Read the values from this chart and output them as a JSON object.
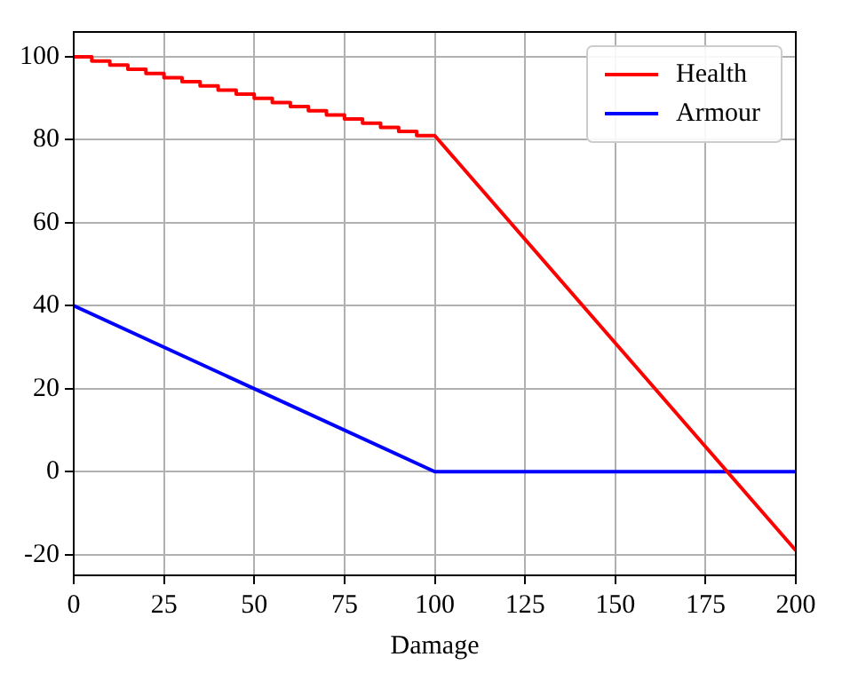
{
  "chart_data": {
    "type": "line",
    "xlabel": "Damage",
    "xlim": [
      0,
      200
    ],
    "xticks": [
      0,
      25,
      50,
      75,
      100,
      125,
      150,
      175,
      200
    ],
    "ylim": [
      -25,
      106
    ],
    "yticks": [
      -20,
      0,
      20,
      40,
      60,
      80,
      100
    ],
    "grid": true,
    "legend": "top right",
    "marker": "none",
    "line_style": "solid",
    "series": [
      {
        "name": "Health",
        "color": "#ff0000",
        "x": [
          0,
          5,
          5,
          10,
          10,
          15,
          15,
          20,
          20,
          25,
          25,
          30,
          30,
          35,
          35,
          40,
          40,
          45,
          45,
          50,
          50,
          55,
          55,
          60,
          60,
          65,
          65,
          70,
          70,
          75,
          75,
          80,
          80,
          85,
          85,
          90,
          90,
          95,
          95,
          100,
          200
        ],
        "values": [
          100,
          100,
          99,
          99,
          98,
          98,
          97,
          97,
          96,
          96,
          95,
          95,
          94,
          94,
          93,
          93,
          92,
          92,
          91,
          91,
          90,
          90,
          89,
          89,
          88,
          88,
          87,
          87,
          86,
          86,
          85,
          85,
          84,
          84,
          83,
          83,
          82,
          82,
          81,
          81,
          -19
        ]
      },
      {
        "name": "Armour",
        "color": "#0000ff",
        "x": [
          0,
          100,
          200
        ],
        "values": [
          40,
          0,
          0
        ]
      }
    ]
  }
}
